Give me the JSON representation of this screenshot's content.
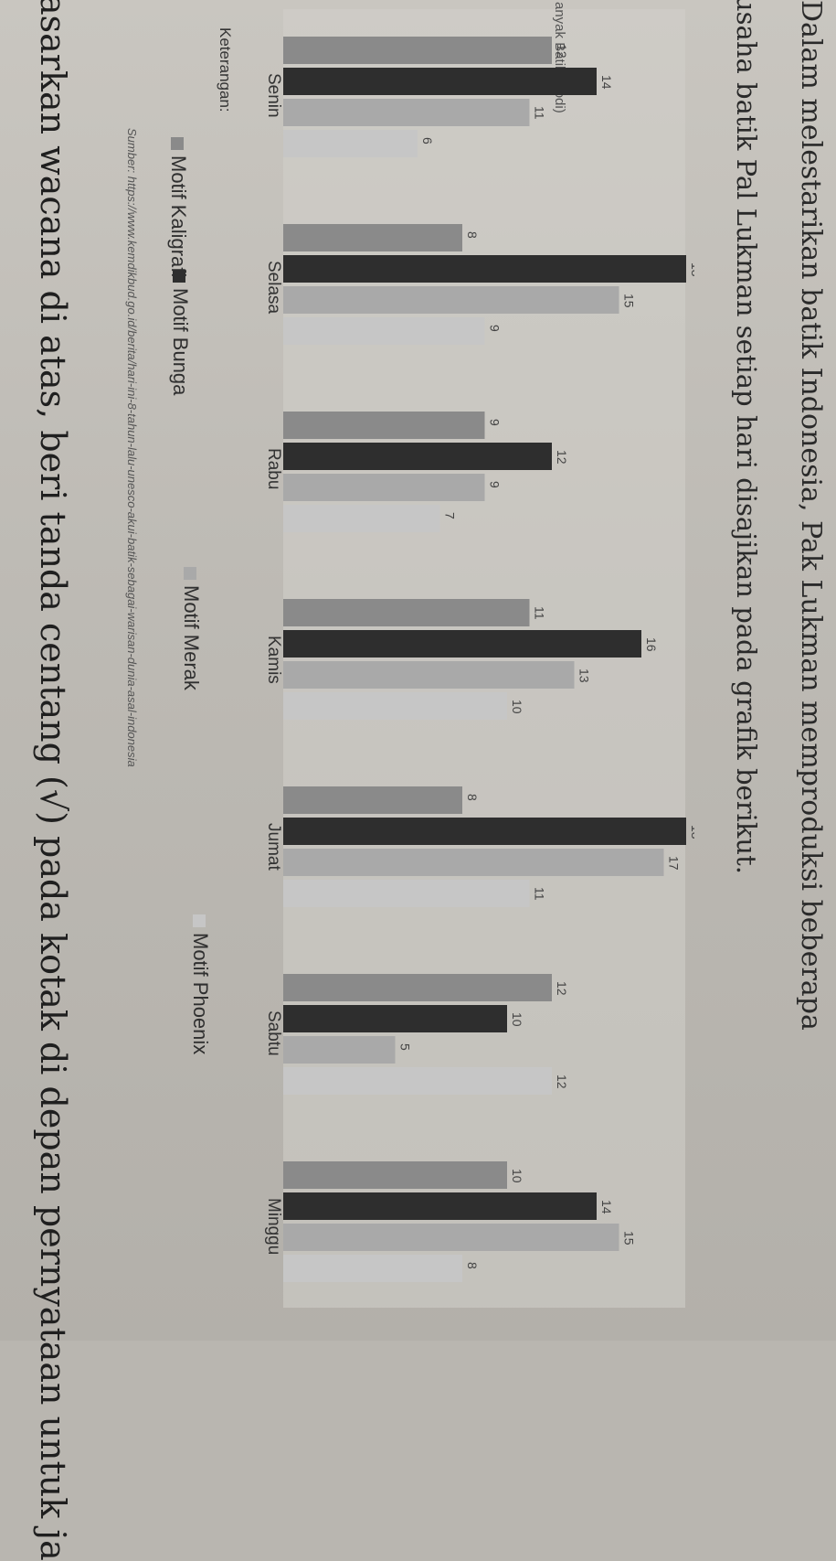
{
  "text": {
    "top_line": "Dalam melestarikan batik Indonesia, Pak Lukman memproduksi beberapa",
    "intro_line2": "usaha batik Pal Lukman setiap hari disajikan pada grafik berikut.",
    "bottom_line": "asarkan wacana di atas, beri tanda centang (√) pada kotak di depan pernyataan untuk ja"
  },
  "chart_data": {
    "type": "bar",
    "ylabel": "anyak Batik (Kodi)",
    "categories": [
      "Senin",
      "Selasa",
      "Rabu",
      "Kamis",
      "Jumat",
      "Sabtu",
      "Minggu"
    ],
    "series": [
      {
        "name": "Motif Kaligrafi",
        "values": [
          12,
          8,
          9,
          11,
          8,
          12,
          10
        ]
      },
      {
        "name": "Motif Bunga",
        "values": [
          14,
          18,
          12,
          16,
          18,
          10,
          14
        ]
      },
      {
        "name": "Motif Merak",
        "values": [
          11,
          15,
          9,
          13,
          17,
          5,
          15
        ]
      },
      {
        "name": "Motif Phoenix",
        "values": [
          6,
          9,
          7,
          10,
          11,
          12,
          8
        ]
      }
    ],
    "legend": {
      "title": "Keterangan:",
      "items": [
        "Motif Kaligrafi",
        "Motif Bunga",
        "Motif Merak",
        "Motif Phoenix"
      ],
      "placement": "bottom"
    },
    "source": "Sumber: https://www.kemdikbud.go.id/berita/hari-ini-8-tahun-lalu-unesco-akui-batik-sebagai-warisan-dunia-asal-indonesia",
    "colors": [
      "#8a8a8a",
      "#2e2e2e",
      "#a9a9a9",
      "#c6c6c6"
    ]
  }
}
